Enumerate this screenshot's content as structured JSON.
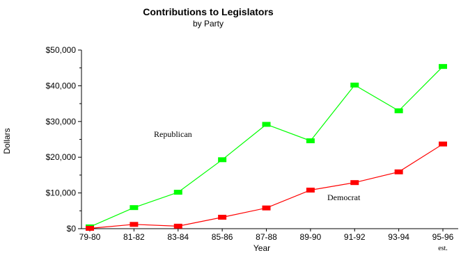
{
  "chart_data": {
    "type": "line",
    "title": "Contributions to Legislators",
    "subtitle": "by Party",
    "xlabel": "Year",
    "ylabel": "Dollars",
    "categories": [
      "79-80",
      "81-82",
      "83-84",
      "85-86",
      "87-88",
      "89-90",
      "91-92",
      "93-94",
      "95-96"
    ],
    "category_note": {
      "category": "95-96",
      "text": "est."
    },
    "y_ticks": [
      "$0",
      "$10,000",
      "$20,000",
      "$30,000",
      "$40,000",
      "$50,000"
    ],
    "y_tick_values": [
      0,
      10000,
      20000,
      30000,
      40000,
      50000
    ],
    "ylim": [
      0,
      50000
    ],
    "grid": false,
    "series": [
      {
        "name": "Republican",
        "color": "#00ff00",
        "values": [
          500,
          5900,
          10200,
          19300,
          29200,
          24600,
          40200,
          33000,
          45400
        ]
      },
      {
        "name": "Democrat",
        "color": "#ff0000",
        "values": [
          100,
          1200,
          700,
          3200,
          5800,
          10800,
          12900,
          15900,
          23700
        ]
      }
    ]
  }
}
